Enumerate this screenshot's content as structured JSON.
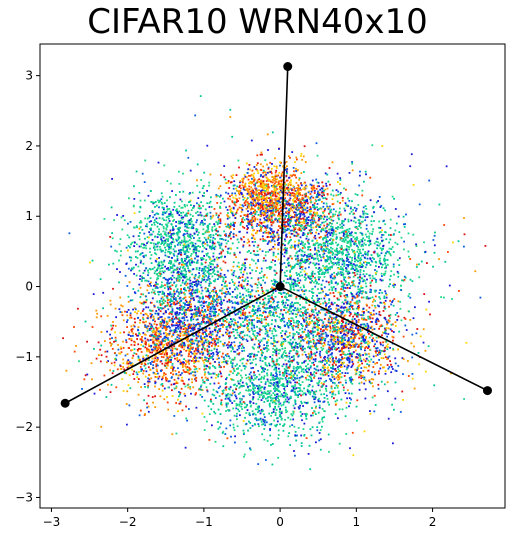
{
  "chart_data": {
    "type": "scatter",
    "title": "CIFAR10 WRN40x10",
    "xlabel": "",
    "ylabel": "",
    "xlim": [
      -3.15,
      2.95
    ],
    "ylim": [
      -3.15,
      3.45
    ],
    "xticks": [
      -3,
      -2,
      -1,
      0,
      1,
      2
    ],
    "xtick_labels": [
      "−3",
      "−2",
      "−1",
      "0",
      "1",
      "2"
    ],
    "yticks": [
      -3,
      -2,
      -1,
      0,
      1,
      2,
      3
    ],
    "ytick_labels": [
      "−3",
      "−2",
      "−1",
      "0",
      "1",
      "2",
      "3"
    ],
    "grid": false,
    "legend": "none",
    "colormap": [
      "#1a1ad9",
      "#0a5fe0",
      "#00c896",
      "#22d88a",
      "#ffd400",
      "#ff9900",
      "#ff4400",
      "#e01010"
    ],
    "clusters": [
      {
        "center": [
          0.0,
          1.1
        ],
        "spread": [
          0.38,
          0.28
        ],
        "color_weights": [
          3,
          2,
          1,
          0,
          1,
          2,
          2,
          2
        ],
        "approx_points": 1100
      },
      {
        "center": [
          -0.15,
          1.35
        ],
        "spread": [
          0.25,
          0.2
        ],
        "color_weights": [
          0,
          0,
          0,
          0,
          2,
          3,
          2,
          1
        ],
        "approx_points": 400
      },
      {
        "center": [
          -1.5,
          -0.9
        ],
        "spread": [
          0.42,
          0.35
        ],
        "color_weights": [
          1,
          1,
          1,
          0,
          2,
          3,
          2,
          2
        ],
        "approx_points": 1000
      },
      {
        "center": [
          -1.1,
          -0.45
        ],
        "spread": [
          0.4,
          0.35
        ],
        "color_weights": [
          3,
          3,
          1,
          0,
          0,
          1,
          1,
          1
        ],
        "approx_points": 900
      },
      {
        "center": [
          0.85,
          -0.75
        ],
        "spread": [
          0.38,
          0.35
        ],
        "color_weights": [
          3,
          2,
          1,
          1,
          1,
          2,
          1,
          2
        ],
        "approx_points": 1200
      },
      {
        "center": [
          -1.3,
          0.55
        ],
        "spread": [
          0.35,
          0.42
        ],
        "color_weights": [
          1,
          1,
          3,
          3,
          0,
          0,
          0,
          0
        ],
        "approx_points": 1100
      },
      {
        "center": [
          0.8,
          0.45
        ],
        "spread": [
          0.4,
          0.42
        ],
        "color_weights": [
          1,
          1,
          3,
          3,
          0,
          0,
          0,
          0
        ],
        "approx_points": 1100
      },
      {
        "center": [
          -0.1,
          -1.45
        ],
        "spread": [
          0.45,
          0.35
        ],
        "color_weights": [
          1,
          1,
          3,
          3,
          0,
          0,
          0,
          0
        ],
        "approx_points": 1000
      },
      {
        "center": [
          -0.1,
          -0.35
        ],
        "spread": [
          0.35,
          0.35
        ],
        "color_weights": [
          0,
          1,
          3,
          2,
          0,
          0,
          0,
          0
        ],
        "approx_points": 500
      },
      {
        "center": [
          0.0,
          0.0
        ],
        "spread": [
          0.95,
          0.9
        ],
        "color_weights": [
          2,
          2,
          2,
          2,
          1,
          1,
          1,
          1
        ],
        "approx_points": 900
      }
    ],
    "lines": [
      {
        "name": "",
        "x": [
          0,
          0.1
        ],
        "y": [
          0,
          3.13
        ]
      },
      {
        "name": "",
        "x": [
          0,
          -2.82
        ],
        "y": [
          0,
          -1.66
        ]
      },
      {
        "name": "",
        "x": [
          0,
          2.72
        ],
        "y": [
          0,
          -1.48
        ]
      }
    ],
    "markers": [
      {
        "x": 0,
        "y": 0
      },
      {
        "x": 0.1,
        "y": 3.13
      },
      {
        "x": -2.82,
        "y": -1.66
      },
      {
        "x": 2.72,
        "y": -1.48
      }
    ]
  }
}
